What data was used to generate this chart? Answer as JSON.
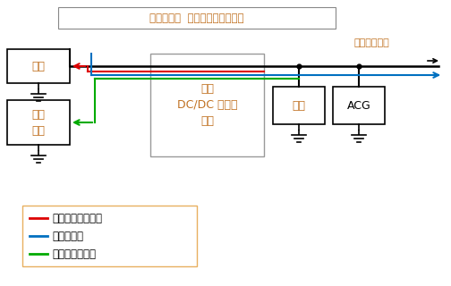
{
  "title": "电容器电源  怠速熄火系统的框图",
  "title_color": "#C07020",
  "label_elec": "电装设备负载",
  "label_elec_color": "#C07020",
  "box_dingzi": "定子",
  "box_diannao": "电容\n模组",
  "box_dcdc": "双向\nDC/DC 转换器\n组件",
  "box_dianchi": "电池",
  "box_acg": "ACG",
  "legend_red": "发动机再次启动时",
  "legend_blue": "怠速熄火时",
  "legend_green": "减速能量回收时",
  "color_red": "#DD0000",
  "color_blue": "#0070C0",
  "color_green": "#00AA00",
  "color_black": "#000000",
  "color_orange": "#C07020",
  "bg_color": "#FFFFFF",
  "box_border": "#000000",
  "box_border_gray": "#999999"
}
